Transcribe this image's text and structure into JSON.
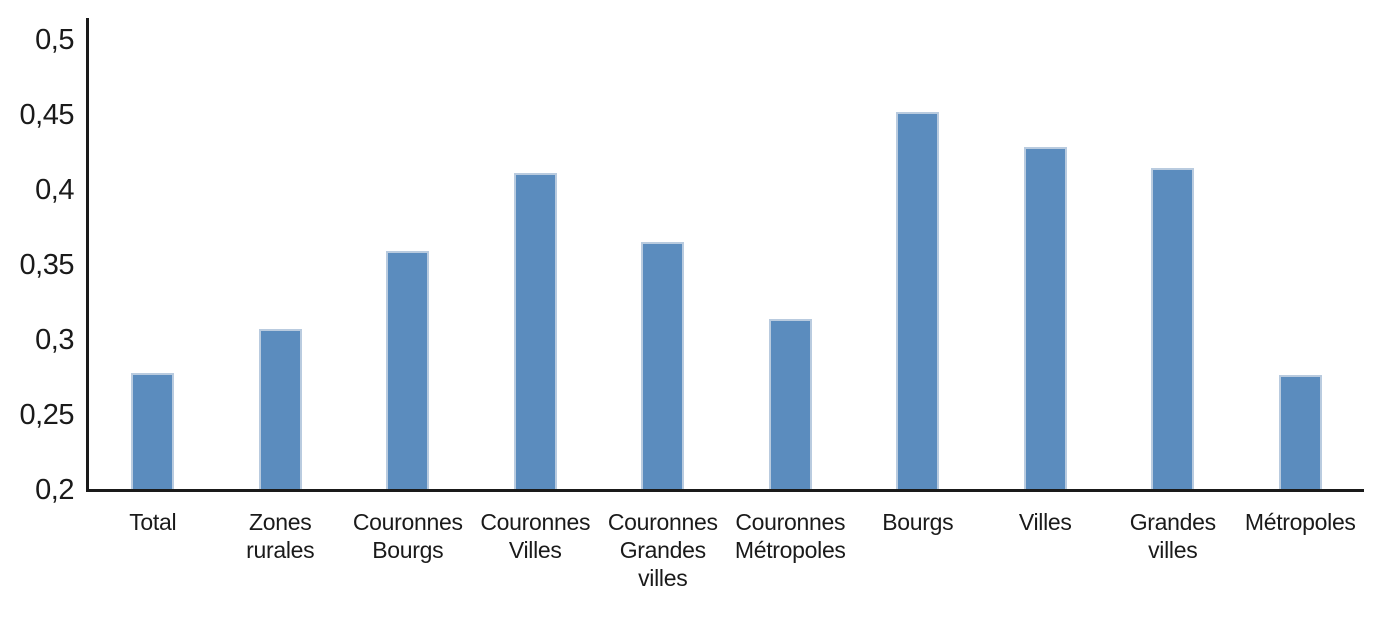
{
  "chart_data": {
    "type": "bar",
    "categories": [
      "Total",
      "Zones rurales",
      "Couronnes Bourgs",
      "Couronnes Villes",
      "Couronnes Grandes villes",
      "Couronnes Métropoles",
      "Bourgs",
      "Villes",
      "Grandes villes",
      "Métropoles"
    ],
    "values": [
      0.277,
      0.307,
      0.359,
      0.411,
      0.365,
      0.313,
      0.451,
      0.428,
      0.414,
      0.276
    ],
    "title": "",
    "xlabel": "",
    "ylabel": "",
    "ylim": [
      0.2,
      0.5
    ],
    "ytick_step": 0.05,
    "ytick_labels": [
      "0,2",
      "0,25",
      "0,3",
      "0,35",
      "0,4",
      "0,45",
      "0,5"
    ],
    "grid": false,
    "legend_position": "none",
    "bar_color": "#5b8cbe",
    "bar_border_color": "#b9cbdf",
    "axis_color": "#1a1a1a",
    "text_color": "#1a1a1a"
  }
}
